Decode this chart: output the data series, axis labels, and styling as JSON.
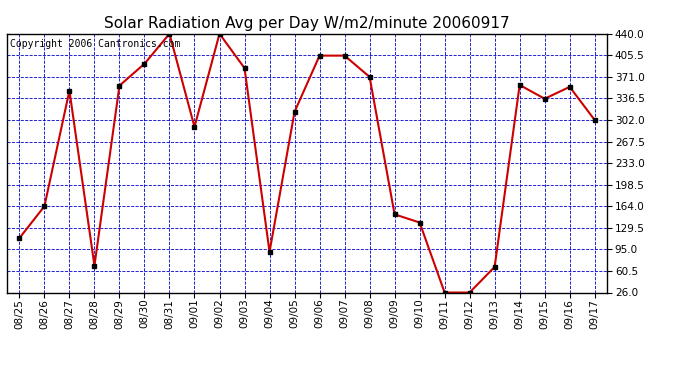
{
  "title": "Solar Radiation Avg per Day W/m2/minute 20060917",
  "copyright_text": "Copyright 2006 Cantronics.com",
  "dates": [
    "08/25",
    "08/26",
    "08/27",
    "08/28",
    "08/29",
    "08/30",
    "08/31",
    "09/01",
    "09/02",
    "09/03",
    "09/04",
    "09/05",
    "09/06",
    "09/07",
    "09/08",
    "09/09",
    "09/10",
    "09/11",
    "09/12",
    "09/13",
    "09/14",
    "09/15",
    "09/16",
    "09/17"
  ],
  "values": [
    113,
    164,
    349,
    69,
    357,
    392,
    440,
    291,
    440,
    385,
    91,
    315,
    405,
    405,
    371,
    151,
    138,
    26,
    26,
    67,
    358,
    336,
    355,
    302
  ],
  "line_color": "#cc0000",
  "marker_color": "#000000",
  "background_color": "#ffffff",
  "plot_bg_color": "#ffffff",
  "grid_color": "#0000cc",
  "yticks": [
    26.0,
    60.5,
    95.0,
    129.5,
    164.0,
    198.5,
    233.0,
    267.5,
    302.0,
    336.5,
    371.0,
    405.5,
    440.0
  ],
  "ylim": [
    26.0,
    440.0
  ],
  "title_fontsize": 11,
  "tick_fontsize": 7.5,
  "copyright_fontsize": 7
}
